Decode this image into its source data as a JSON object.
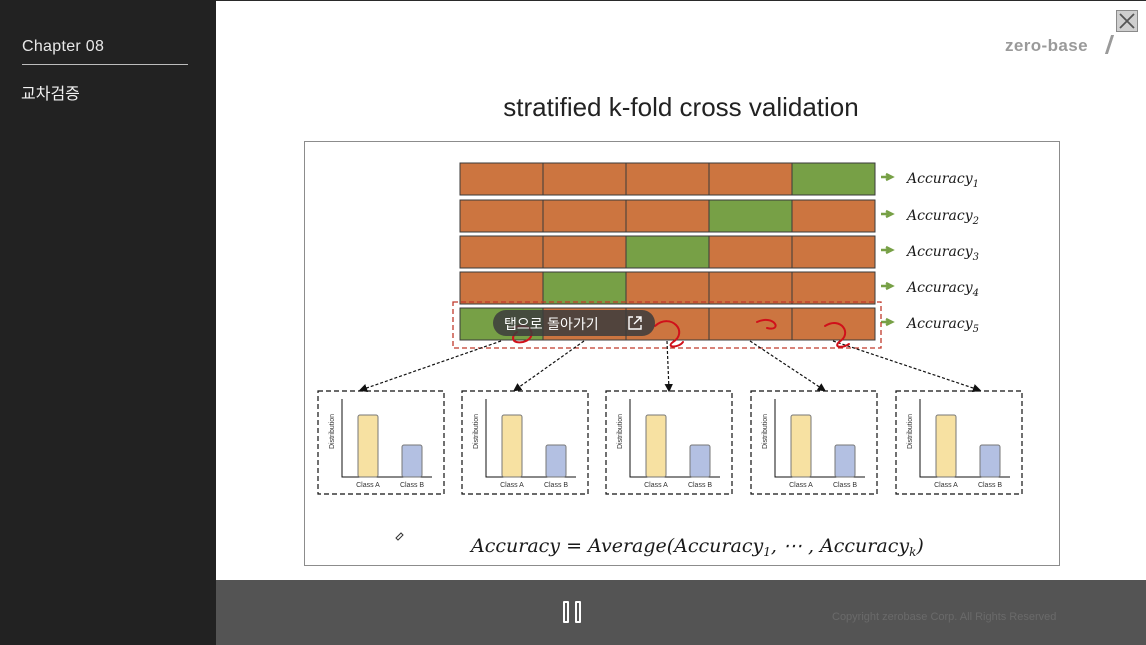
{
  "sidebar": {
    "chapter": "Chapter   08",
    "lesson": "교차검증"
  },
  "slide": {
    "logo": "zero-base",
    "title": "stratified k-fold cross validation",
    "figure": {
      "fold_labels": [
        "Accuracy",
        "Accuracy",
        "Accuracy",
        "Accuracy",
        "Accuracy"
      ],
      "fold_subscripts": [
        "1",
        "2",
        "3",
        "4",
        "5"
      ],
      "y_axis_label": "Distribution",
      "class_a_label": "Class A",
      "class_b_label": "Class B",
      "formula_left": "Accuracy = Average(Accuracy",
      "formula_sub1": "1",
      "formula_mid": ", ⋯ , Accuracy",
      "formula_subk": "k",
      "formula_right": ")"
    }
  },
  "overlay": {
    "back_to_tab_label": "탭으로 돌아가기",
    "back_to_tab_icon": "open-in-new-icon"
  },
  "controls": {
    "copyright": "Copyright zerobase Corp. All Rights Reserved",
    "pause_icon": "pause-icon"
  },
  "colors": {
    "train_block": "#cc7540",
    "test_block": "#77a046",
    "class_a_bar": "#f7e1a2",
    "class_b_bar": "#b3c0e2",
    "selection_box": "#c0392b",
    "pen_marks": "#d0101a"
  }
}
